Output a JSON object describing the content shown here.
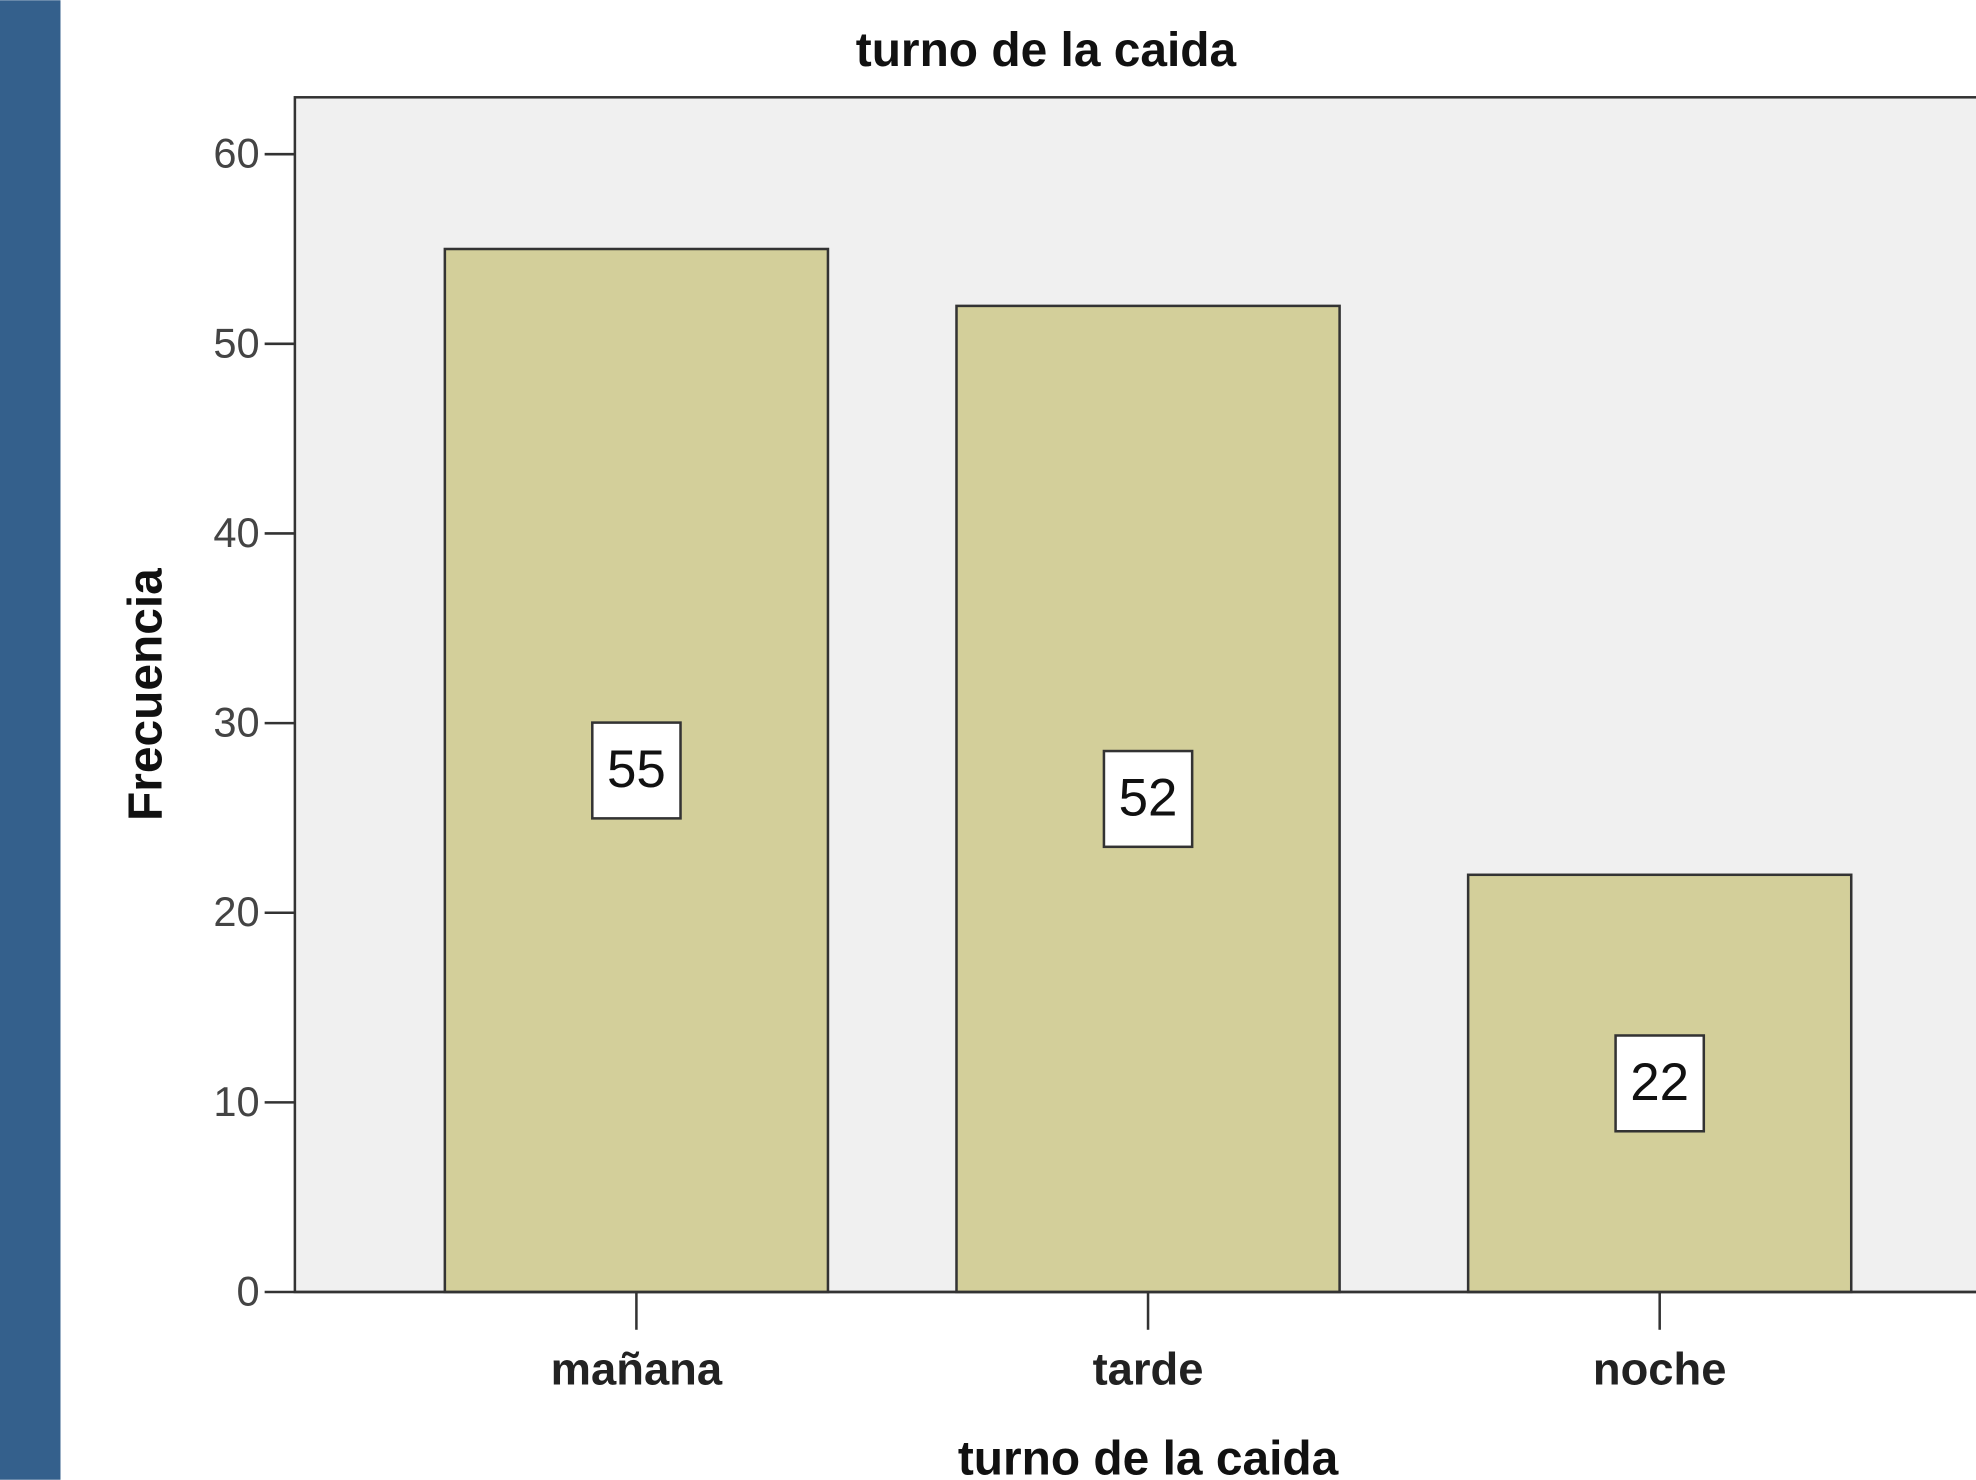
{
  "chart_data": {
    "type": "bar",
    "title": "turno de la caida",
    "x_label": "turno de la caida",
    "y_label": "Frecuencia",
    "categories": [
      "mañana",
      "tarde",
      "noche"
    ],
    "values": [
      55,
      52,
      22
    ],
    "color": "#d3cf9a",
    "ylim": [
      0,
      63
    ],
    "yticks": [
      0,
      10,
      20,
      30,
      40,
      50,
      60
    ],
    "grid": false
  }
}
